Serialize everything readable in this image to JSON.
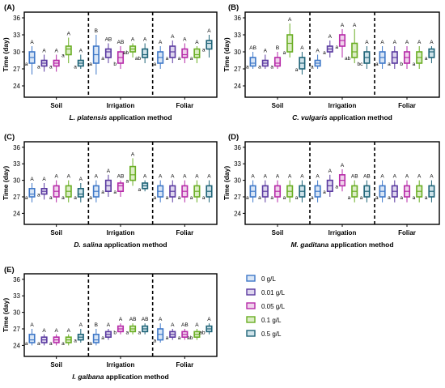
{
  "legend": [
    {
      "name": "0 g/L",
      "color": "#3f78c8"
    },
    {
      "name": "0.01 g/L",
      "color": "#5a3aa0"
    },
    {
      "name": "0.05 g/L",
      "color": "#b62aa8"
    },
    {
      "name": "0.1 g/L",
      "color": "#6aae24"
    },
    {
      "name": "0.5 g/L",
      "color": "#1f6478"
    }
  ],
  "chart_data": [
    {
      "type": "box",
      "panel": "(A)",
      "ylabel": "Time (day)",
      "ylim": [
        22,
        37
      ],
      "yticks": [
        24,
        27,
        30,
        33,
        36
      ],
      "groups": [
        "Soil",
        "Irrigation",
        "Foliar"
      ],
      "title_italic": "L. platensis",
      "title_rest": " application method",
      "series": [
        {
          "name": "0 g/L",
          "boxes": {
            "Soil": [
              26,
              28,
              29,
              30,
              31
            ],
            "Irrigation": [
              26,
              28,
              29.5,
              31,
              33
            ],
            "Foliar": [
              27,
              28,
              29,
              30,
              31
            ]
          }
        },
        {
          "name": "0.01 g/L",
          "boxes": {
            "Soil": [
              26.5,
              27.5,
              28,
              28.5,
              29.5
            ],
            "Irrigation": [
              28,
              29,
              30,
              30.5,
              31.5
            ],
            "Foliar": [
              28,
              29,
              30,
              31,
              32
            ]
          }
        },
        {
          "name": "0.05 g/L",
          "boxes": {
            "Soil": [
              26.5,
              27.5,
              28,
              28.5,
              29.5
            ],
            "Irrigation": [
              27,
              28,
              29,
              30,
              31
            ],
            "Foliar": [
              28,
              29,
              29.5,
              30.5,
              31.5
            ]
          }
        },
        {
          "name": "0.1 g/L",
          "boxes": {
            "Soil": [
              28,
              29.5,
              30.5,
              31,
              32.5
            ],
            "Irrigation": [
              29,
              30,
              30.5,
              31,
              31.5
            ],
            "Foliar": [
              28,
              29,
              29.5,
              30.5,
              31
            ]
          }
        },
        {
          "name": "0.5 g/L",
          "boxes": {
            "Soil": [
              27,
              27.5,
              28,
              28.5,
              29.5
            ],
            "Irrigation": [
              28,
              29,
              29.5,
              30.5,
              31.5
            ],
            "Foliar": [
              29,
              30.5,
              31.5,
              32,
              33
            ]
          }
        }
      ],
      "letters": {
        "Soil": [
          [
            "a",
            "A"
          ],
          [
            "a",
            "A"
          ],
          [
            "a",
            "A"
          ],
          [
            "a",
            "A"
          ],
          [
            "a",
            "A"
          ]
        ],
        "Irrigation": [
          [
            "a",
            "B"
          ],
          [
            "a",
            "AB"
          ],
          [
            "b",
            "AB"
          ],
          [
            "ab",
            "A"
          ],
          [
            "ab",
            "A"
          ]
        ],
        "Foliar": [
          [
            "a",
            "A"
          ],
          [
            "a",
            "A"
          ],
          [
            "a",
            "A"
          ],
          [
            "a",
            "A"
          ],
          [
            "a",
            "A"
          ]
        ]
      }
    },
    {
      "type": "box",
      "panel": "(B)",
      "ylabel": "Time (day)",
      "ylim": [
        22,
        37
      ],
      "yticks": [
        24,
        27,
        30,
        33,
        36
      ],
      "groups": [
        "Soil",
        "Irrigation",
        "Foliar"
      ],
      "title_italic": "C. vulgaris",
      "title_rest": " application method",
      "series": [
        {
          "name": "0 g/L",
          "boxes": {
            "Soil": [
              27,
              27.5,
              28,
              29,
              30
            ],
            "Irrigation": [
              27,
              27.5,
              28,
              28.5,
              29.5
            ],
            "Foliar": [
              27,
              28,
              29,
              30,
              31
            ]
          }
        },
        {
          "name": "0.01 g/L",
          "boxes": {
            "Soil": [
              27,
              27.5,
              28,
              28.5,
              29.5
            ],
            "Irrigation": [
              29,
              30,
              30.5,
              31,
              32
            ]
          },
          "Foliar": [
            27,
            28,
            29,
            30,
            31
          ]
        },
        {
          "name": "0.05 g/L",
          "boxes": {
            "Soil": [
              27,
              27.5,
              28,
              29,
              30
            ],
            "Irrigation": [
              29,
              31,
              32,
              33,
              34
            ],
            "Foliar": [
              27,
              28,
              29,
              30,
              31
            ]
          }
        },
        {
          "name": "0.1 g/L",
          "boxes": {
            "Soil": [
              29,
              30,
              31.5,
              33,
              35
            ],
            "Irrigation": [
              28,
              29,
              30,
              31.5,
              34
            ],
            "Foliar": [
              27,
              28,
              29,
              30,
              31
            ]
          }
        },
        {
          "name": "0.5 g/L",
          "boxes": {
            "Soil": [
              26,
              27,
              28,
              29,
              30
            ],
            "Irrigation": [
              27,
              28,
              29,
              30,
              31
            ],
            "Foliar": [
              28,
              29,
              30,
              30.5,
              31
            ]
          }
        }
      ],
      "letters": {
        "Soil": [
          [
            "a",
            "AB"
          ],
          [
            "a",
            "A"
          ],
          [
            "a",
            "B"
          ],
          [
            "a",
            "A"
          ],
          [
            "a",
            "A"
          ]
        ],
        "Irrigation": [
          [
            "a",
            "A"
          ],
          [
            "a",
            "A"
          ],
          [
            "a",
            "A"
          ],
          [
            "ab",
            "A"
          ],
          [
            "bc",
            "A"
          ]
        ],
        "Foliar": [
          [
            "a",
            "A"
          ],
          [
            "a",
            "A"
          ],
          [
            "b",
            "A"
          ],
          [
            "a",
            "A"
          ],
          [
            "a",
            "A"
          ]
        ]
      }
    },
    {
      "type": "box",
      "panel": "(C)",
      "ylabel": "Time (day)",
      "ylim": [
        22,
        37
      ],
      "yticks": [
        24,
        27,
        30,
        33,
        36
      ],
      "groups": [
        "Soil",
        "Irrigation",
        "Foliar"
      ],
      "title_italic": "D. salina",
      "title_rest": " application method",
      "series": [
        {
          "name": "0 g/L",
          "boxes": {
            "Soil": [
              26,
              27,
              27.5,
              28.5,
              29.5
            ],
            "Irrigation": [
              26,
              27,
              28,
              29,
              30
            ],
            "Foliar": [
              26,
              27,
              28,
              29,
              30
            ]
          }
        },
        {
          "name": "0.01 g/L",
          "boxes": {
            "Soil": [
              26.5,
              27.5,
              28,
              28.5,
              29.5
            ],
            "Irrigation": [
              27,
              28,
              29,
              30,
              31
            ]
          },
          "Foliar": [
            26,
            27,
            28,
            29,
            30
          ]
        },
        {
          "name": "0.05 g/L",
          "boxes": {
            "Soil": [
              26,
              27,
              28,
              29,
              30
            ],
            "Irrigation": [
              27,
              28,
              29,
              29.5,
              30
            ],
            "Foliar": [
              26,
              27,
              28,
              29,
              30
            ]
          }
        },
        {
          "name": "0.1 g/L",
          "boxes": {
            "Soil": [
              26,
              27,
              28,
              29,
              30
            ],
            "Irrigation": [
              29,
              30,
              31,
              32.5,
              34
            ],
            "Foliar": [
              26,
              27,
              28,
              29,
              30
            ]
          }
        },
        {
          "name": "0.5 g/L",
          "boxes": {
            "Soil": [
              26,
              27,
              27.5,
              28.5,
              29.5
            ],
            "Irrigation": [
              28,
              28.5,
              29,
              29.5,
              30
            ]
          },
          "Foliar": [
            26,
            27,
            28,
            29,
            30
          ]
        }
      ],
      "letters": {
        "Soil": [
          [
            "a",
            "A"
          ],
          [
            "a",
            "A"
          ],
          [
            "a",
            "A"
          ],
          [
            "a",
            "A"
          ],
          [
            "a",
            "A"
          ]
        ],
        "Irrigation": [
          [
            "a",
            "A"
          ],
          [
            "a",
            "A"
          ],
          [
            "a",
            "AB"
          ],
          [
            "a",
            "A"
          ],
          [
            "a",
            "A"
          ]
        ],
        "Foliar": [
          [
            "a",
            "A"
          ],
          [
            "a",
            "A"
          ],
          [
            "a",
            "A"
          ],
          [
            "a",
            "A"
          ],
          [
            "a",
            "A"
          ]
        ]
      }
    },
    {
      "type": "box",
      "panel": "(D)",
      "ylabel": "Time (day)",
      "ylim": [
        22,
        37
      ],
      "yticks": [
        24,
        27,
        30,
        33,
        36
      ],
      "groups": [
        "Soil",
        "Irrigation",
        "Foliar"
      ],
      "title_italic": "M. gaditana",
      "title_rest": " application method",
      "series": [
        {
          "name": "0 g/L",
          "boxes": {
            "Soil": [
              26,
              27,
              28,
              29,
              30
            ],
            "Irrigation": [
              26,
              27,
              28,
              29,
              30
            ],
            "Foliar": [
              26,
              27,
              28,
              29,
              30
            ]
          }
        },
        {
          "name": "0.01 g/L",
          "boxes": {
            "Soil": [
              26,
              27,
              28,
              29,
              30
            ],
            "Irrigation": [
              27,
              28,
              29,
              30,
              31
            ]
          },
          "Foliar": [
            26,
            27,
            28,
            29,
            30
          ]
        },
        {
          "name": "0.05 g/L",
          "boxes": {
            "Soil": [
              26,
              27,
              28,
              29,
              30
            ],
            "Irrigation": [
              28,
              29,
              30,
              31,
              32
            ],
            "Foliar": [
              26,
              27,
              28,
              29,
              30
            ]
          }
        },
        {
          "name": "0.1 g/L",
          "boxes": {
            "Soil": [
              26,
              27,
              28,
              29,
              30
            ],
            "Irrigation": [
              26,
              27,
              28,
              29,
              30
            ],
            "Foliar": [
              26,
              27,
              28,
              29,
              30
            ]
          }
        },
        {
          "name": "0.5 g/L",
          "boxes": {
            "Soil": [
              26,
              27,
              28,
              29,
              30
            ],
            "Irrigation": [
              26,
              27,
              28,
              29,
              30
            ],
            "Foliar": [
              26,
              27,
              28,
              29,
              30
            ]
          }
        }
      ],
      "letters": {
        "Soil": [
          [
            "a",
            "A"
          ],
          [
            "a",
            "A"
          ],
          [
            "a",
            "A"
          ],
          [
            "a",
            "A"
          ],
          [
            "a",
            "A"
          ]
        ],
        "Irrigation": [
          [
            "a",
            "A"
          ],
          [
            "a",
            "A"
          ],
          [
            "a",
            "A"
          ],
          [
            "a",
            "AB"
          ],
          [
            "a",
            "AB"
          ]
        ],
        "Foliar": [
          [
            "a",
            "A"
          ],
          [
            "a",
            "A"
          ],
          [
            "a",
            "A"
          ],
          [
            "a",
            "A"
          ],
          [
            "a",
            "A"
          ]
        ]
      }
    },
    {
      "type": "box",
      "panel": "(E)",
      "ylabel": "Time (day)",
      "ylim": [
        22,
        37
      ],
      "yticks": [
        24,
        27,
        30,
        33,
        36
      ],
      "groups": [
        "Soil",
        "Irrigation",
        "Foliar"
      ],
      "title_italic": "I. galbana",
      "title_rest": " application method",
      "series": [
        {
          "name": "0 g/L",
          "boxes": {
            "Soil": [
              24,
              24.5,
              25,
              26,
              27
            ],
            "Irrigation": [
              24,
              24.5,
              25,
              26,
              27
            ],
            "Foliar": [
              24.5,
              25,
              26,
              27,
              28
            ]
          }
        },
        {
          "name": "0.01 g/L",
          "boxes": {
            "Soil": [
              24,
              24.5,
              25,
              25.5,
              26
            ],
            "Irrigation": [
              25,
              25.5,
              26,
              26.5,
              27
            ]
          },
          "Foliar": [
            25,
            25.5,
            26,
            26.5,
            27
          ]
        },
        {
          "name": "0.05 g/L",
          "boxes": {
            "Soil": [
              24,
              24.5,
              25,
              25.5,
              26
            ],
            "Irrigation": [
              26,
              26.5,
              27,
              27.5,
              28
            ],
            "Foliar": [
              25,
              25.5,
              26,
              26.5,
              27
            ]
          }
        },
        {
          "name": "0.1 g/L",
          "boxes": {
            "Soil": [
              24,
              24.5,
              25,
              25.5,
              26
            ],
            "Irrigation": [
              26,
              26.5,
              27,
              27.5,
              28
            ],
            "Foliar": [
              25,
              25.5,
              26,
              26.5,
              27
            ]
          }
        },
        {
          "name": "0.5 g/L",
          "boxes": {
            "Soil": [
              24.5,
              25,
              25.5,
              26,
              27
            ],
            "Irrigation": [
              26,
              26.5,
              27,
              27.5,
              28
            ],
            "Foliar": [
              26,
              26.5,
              27,
              27.5,
              28
            ]
          }
        }
      ],
      "letters": {
        "Soil": [
          [
            "a",
            "A"
          ],
          [
            "a",
            "A"
          ],
          [
            "a",
            "A"
          ],
          [
            "a",
            "A"
          ],
          [
            "a",
            "A"
          ]
        ],
        "Irrigation": [
          [
            "a",
            "B"
          ],
          [
            "a",
            "A"
          ],
          [
            "b",
            "A"
          ],
          [
            "a",
            "AB"
          ],
          [
            "a",
            "AB"
          ]
        ],
        "Foliar": [
          [
            "a",
            "A"
          ],
          [
            "a",
            "A"
          ],
          [
            "a",
            "AB"
          ],
          [
            "ab",
            "A"
          ],
          [
            "ab",
            "A"
          ]
        ]
      }
    }
  ]
}
